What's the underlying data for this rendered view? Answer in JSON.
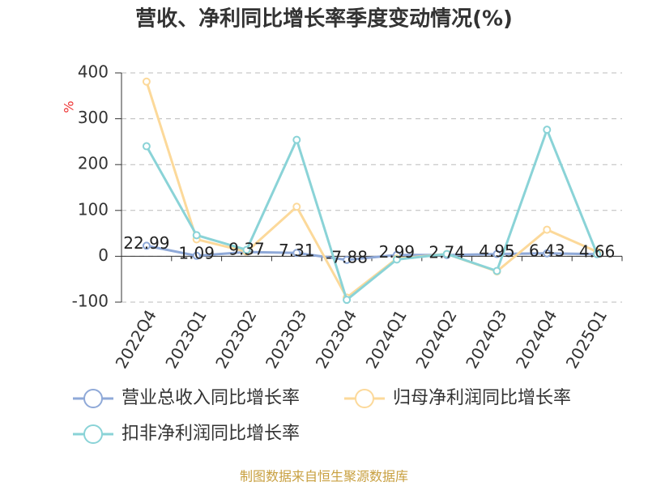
{
  "chart_data": {
    "type": "line",
    "title": "营收、净利同比增长率季度变动情况(%)",
    "y_label": "%",
    "source": "制图数据来自恒生聚源数据库",
    "categories": [
      "2022Q4",
      "2023Q1",
      "2023Q2",
      "2023Q3",
      "2023Q4",
      "2024Q1",
      "2024Q2",
      "2024Q3",
      "2024Q4",
      "2025Q1"
    ],
    "series": [
      {
        "name": "营业总收入同比增长率",
        "color": "#8fa9d8",
        "values": [
          22.99,
          1.09,
          9.37,
          7.31,
          -7.88,
          2.99,
          2.74,
          4.95,
          6.43,
          4.66
        ],
        "show_labels": true
      },
      {
        "name": "归母净利润同比增长率",
        "color": "#fcd99a",
        "values": [
          381,
          37,
          10,
          108,
          -90,
          -5,
          5,
          -33,
          58,
          10
        ]
      },
      {
        "name": "扣非净利润同比增长率",
        "color": "#8ad3d7",
        "values": [
          240,
          46,
          14,
          254,
          -95,
          -7,
          5,
          -32,
          276,
          5
        ]
      }
    ],
    "ylim": [
      -100,
      400
    ],
    "yticks": [
      -100,
      0,
      100,
      200,
      300,
      400
    ],
    "grid": true
  }
}
